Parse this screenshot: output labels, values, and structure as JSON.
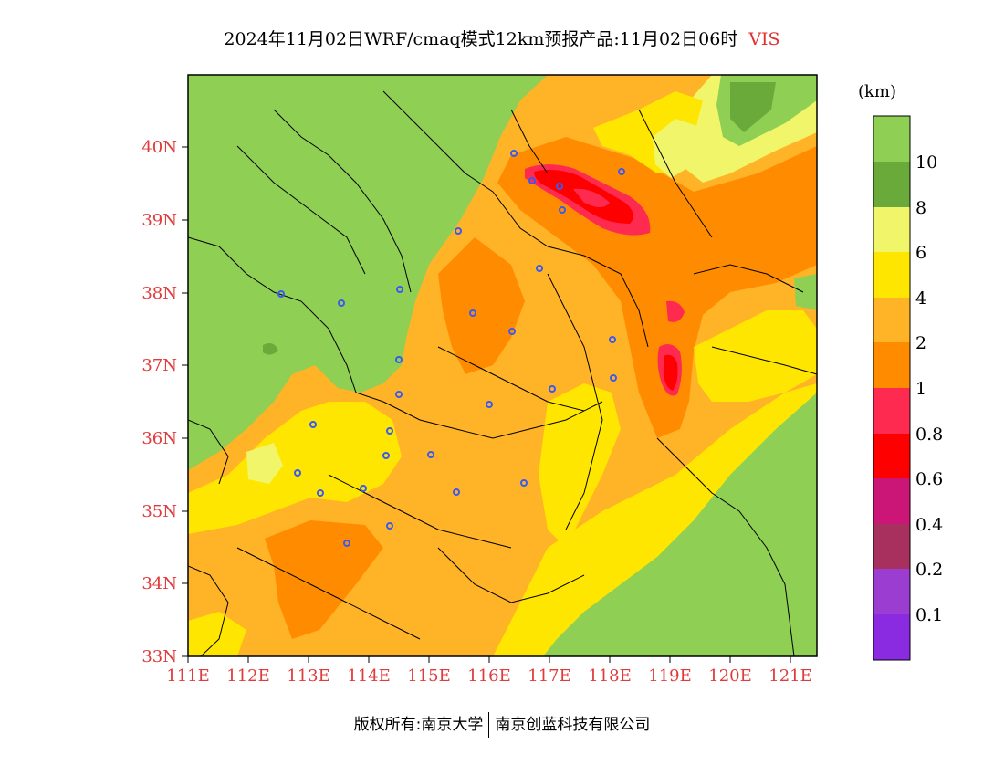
{
  "title": {
    "text": "2024年11月02日WRF/cmaq模式12km预报产品:11月02日06时",
    "variable": "VIS"
  },
  "map": {
    "type": "filled-contour-map",
    "lat_range": [
      33,
      41
    ],
    "lon_range": [
      111,
      121.5
    ],
    "lat_ticks": [
      "33N",
      "34N",
      "35N",
      "36N",
      "37N",
      "38N",
      "39N",
      "40N"
    ],
    "lon_ticks": [
      "111E",
      "112E",
      "113E",
      "114E",
      "115E",
      "116E",
      "117E",
      "118E",
      "119E",
      "120E",
      "121E"
    ],
    "tick_color": "#e03a3a",
    "regions": [
      {
        "name": "northwest-mountains",
        "level": ">10",
        "color": "#8ecf54"
      },
      {
        "name": "southeast-sea",
        "level": ">10",
        "color": "#8ecf54"
      },
      {
        "name": "northeast-sea",
        "level": ">10",
        "color": "#8ecf54"
      },
      {
        "name": "central-plain",
        "level": "2-4",
        "color": "#ffb326"
      },
      {
        "name": "bohai-core",
        "level": "1-2",
        "color": "#ff8c00"
      },
      {
        "name": "tianjin-band",
        "level": "0.6-1",
        "color": "#ff2a50"
      },
      {
        "name": "shandong-spot",
        "level": "0.6-1",
        "color": "#ff2a50"
      }
    ],
    "station_marker_color": "#3a5af0"
  },
  "colorbar": {
    "unit": "(km)",
    "levels": [
      "0.1",
      "0.2",
      "0.4",
      "0.6",
      "0.8",
      "1",
      "2",
      "4",
      "6",
      "8",
      "10"
    ],
    "colors": [
      "#8a2be2",
      "#9b3dd0",
      "#a8305e",
      "#cc1677",
      "#ff0000",
      "#ff2a50",
      "#ff8c00",
      "#ffb326",
      "#ffe600",
      "#f0f56a",
      "#6aaa3a",
      "#8ecf54"
    ]
  },
  "footer": {
    "left": "版权所有:南京大学",
    "right": "南京创蓝科技有限公司"
  }
}
